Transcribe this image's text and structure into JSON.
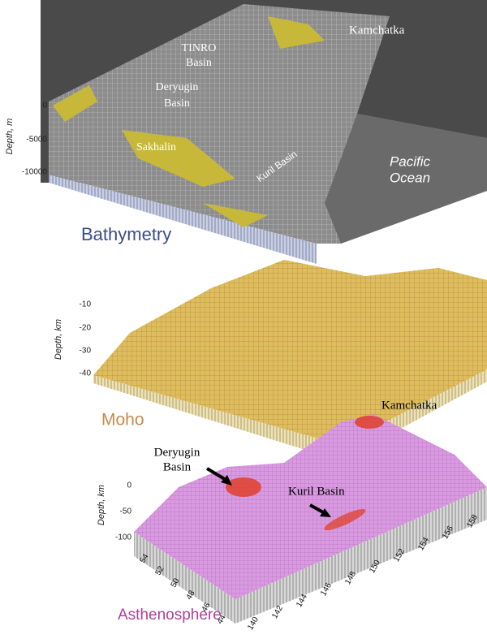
{
  "bathymetry": {
    "label": "Bathymetry",
    "axis_label": "Depth, m",
    "ticks": [
      "0",
      "-5000",
      "-10000"
    ],
    "annotations": {
      "kamchatka": "Kamchatka",
      "tinro": "TINRO",
      "tinro_2": "Basin",
      "deryugin": "Deryugin",
      "deryugin_2": "Basin",
      "sakhalin": "Sakhalin",
      "kuril": "Kuril Basin",
      "pacific": "Pacific",
      "pacific_2": "Ocean"
    }
  },
  "moho": {
    "label": "Moho",
    "axis_label": "Depth, km",
    "ticks": [
      "-10",
      "-20",
      "-30",
      "-40"
    ]
  },
  "asthenosphere": {
    "label": "Asthenosphere",
    "axis_label": "Depth, km",
    "ticks": [
      "0",
      "-50",
      "-100"
    ],
    "lat_ticks": [
      "54",
      "52",
      "50",
      "48",
      "46",
      "44"
    ],
    "lon_ticks": [
      "140",
      "142",
      "144",
      "146",
      "148",
      "150",
      "152",
      "154",
      "156",
      "158"
    ],
    "annotations": {
      "kamchatka": "Kamchatka",
      "deryugin": "Deryugin",
      "deryugin_2": "Basin",
      "kuril": "Kuril Basin"
    }
  }
}
